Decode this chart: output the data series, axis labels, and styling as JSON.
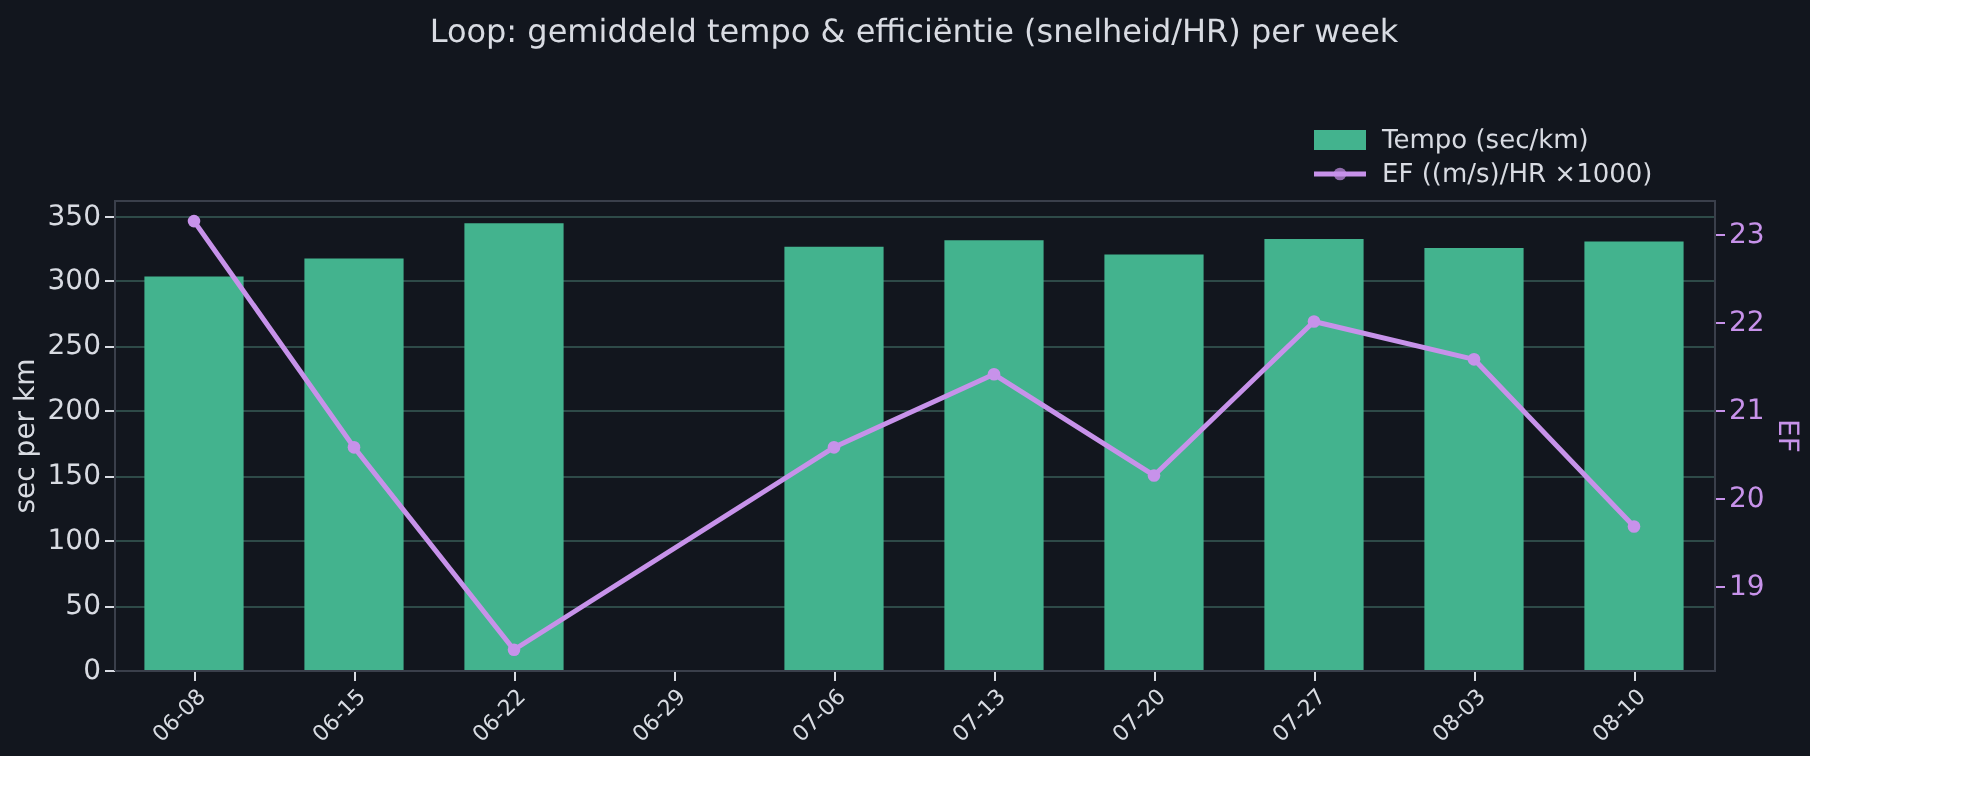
{
  "chart_data": {
    "type": "bar",
    "title": "Loop: gemiddeld tempo & efficiëntie (snelheid/HR) per week",
    "ylabel": "sec per km",
    "y2label": "EF",
    "categories": [
      "06-08",
      "06-15",
      "06-22",
      "06-29",
      "07-06",
      "07-13",
      "07-20",
      "07-27",
      "08-03",
      "08-10"
    ],
    "series": [
      {
        "name": "Tempo (sec/km)",
        "color": "#43b38e",
        "values": [
          303,
          317,
          344,
          null,
          326,
          331,
          320,
          332,
          325,
          330
        ]
      },
      {
        "name": "EF ((m/s)/HR ×1000)",
        "type": "line",
        "axis": "y2",
        "color": "#c792ea",
        "marker": "circle",
        "values": [
          23.15,
          20.58,
          18.28,
          null,
          20.58,
          21.41,
          20.26,
          22.01,
          21.58,
          19.68
        ]
      }
    ],
    "ylim": [
      0,
      362
    ],
    "yticks": [
      0,
      50,
      100,
      150,
      200,
      250,
      300,
      350
    ],
    "y2lim": [
      18.05,
      23.39
    ],
    "y2ticks": [
      19,
      20,
      21,
      22,
      23
    ],
    "grid": "y",
    "legend": "top right"
  }
}
